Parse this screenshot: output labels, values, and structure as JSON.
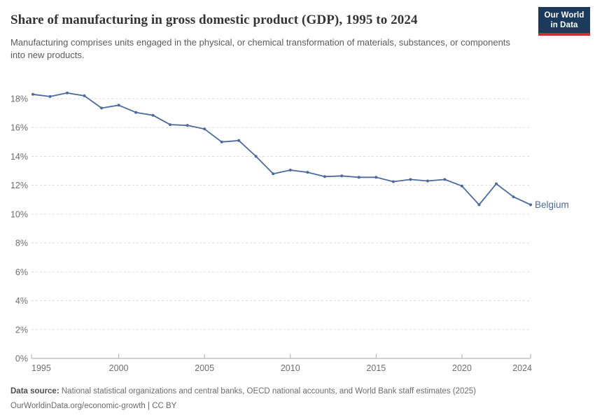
{
  "header": {
    "title": "Share of manufacturing in gross domestic product (GDP), 1995 to 2024",
    "subtitle": "Manufacturing comprises units engaged in the physical, or chemical transformation of materials, substances, or components into new products."
  },
  "logo": {
    "line1": "Our World",
    "line2": "in Data",
    "bg_color": "#1b3a5c",
    "accent_color": "#c9302f"
  },
  "chart_data": {
    "type": "line",
    "title": "Share of manufacturing in gross domestic product (GDP), 1995 to 2024",
    "xlabel": "",
    "ylabel": "",
    "xlim": [
      1995,
      2024
    ],
    "ylim": [
      0,
      18.4
    ],
    "grid": "horizontal-dashed",
    "x_ticks": [
      1995,
      2000,
      2005,
      2010,
      2015,
      2020,
      2024
    ],
    "y_ticks": [
      0,
      2,
      4,
      6,
      8,
      10,
      12,
      14,
      16,
      18
    ],
    "y_tick_suffix": "%",
    "series": [
      {
        "name": "Belgium",
        "color": "#4c6a9c",
        "x": [
          1995,
          1996,
          1997,
          1998,
          1999,
          2000,
          2001,
          2002,
          2003,
          2004,
          2005,
          2006,
          2007,
          2008,
          2009,
          2010,
          2011,
          2012,
          2013,
          2014,
          2015,
          2016,
          2017,
          2018,
          2019,
          2020,
          2021,
          2022,
          2023,
          2024
        ],
        "values": [
          18.3,
          18.15,
          18.4,
          18.2,
          17.35,
          17.55,
          17.05,
          16.85,
          16.2,
          16.15,
          15.9,
          15.0,
          15.1,
          14.0,
          12.8,
          13.05,
          12.9,
          12.6,
          12.65,
          12.55,
          12.55,
          12.25,
          12.4,
          12.3,
          12.4,
          11.95,
          10.65,
          12.1,
          11.2,
          10.65
        ]
      }
    ],
    "end_label": "Belgium",
    "legend_position": "end-of-line"
  },
  "footer": {
    "source_label": "Data source:",
    "source_text": " National statistical organizations and central banks, OECD national accounts, and World Bank staff estimates (2025)",
    "link_text": "OurWorldinData.org/economic-growth | CC BY"
  },
  "colors": {
    "line": "#4c6a9c",
    "grid": "#dcdcdc",
    "axis": "#a9a9a9",
    "tick_label": "#6e6e6e",
    "title": "#333333",
    "subtitle": "#5b5b5b"
  }
}
